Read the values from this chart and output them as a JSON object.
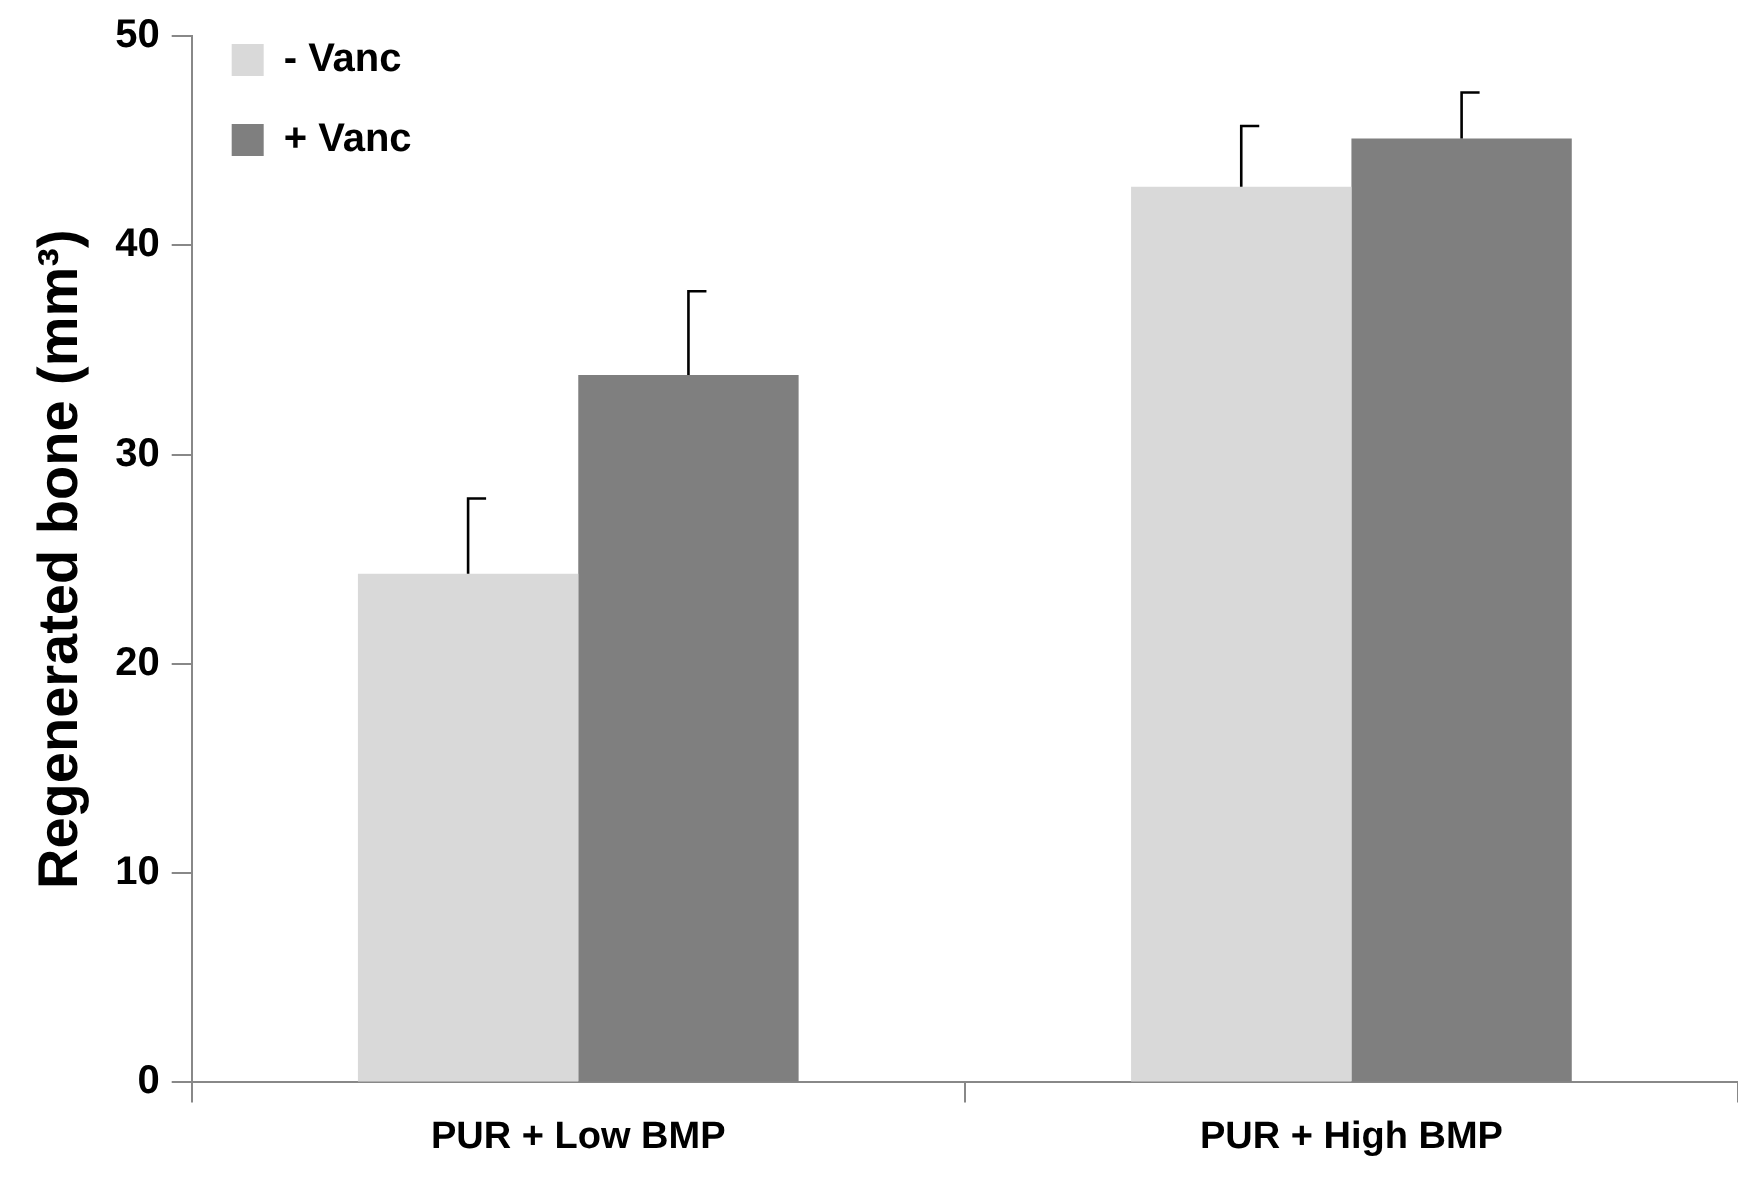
{
  "chart_data": {
    "type": "bar",
    "ylabel": "Regenerated bone (mm³)",
    "categories": [
      "PUR + Low BMP",
      "PUR + High BMP"
    ],
    "series": [
      {
        "name": "- Vanc",
        "color": "#d9d9d9",
        "values": [
          24.3,
          42.8
        ],
        "errors": [
          [
            24.3,
            27.9
          ],
          [
            42.8,
            45.7
          ]
        ]
      },
      {
        "name": "+ Vanc",
        "color": "#7f7f7f",
        "values": [
          33.8,
          45.1
        ],
        "errors": [
          [
            33.8,
            37.8
          ],
          [
            45.1,
            47.3
          ]
        ]
      }
    ],
    "ylim": [
      0,
      50
    ],
    "yticks": [
      0,
      10,
      20,
      30,
      40,
      50
    ],
    "grid": false,
    "legend": "top left"
  }
}
